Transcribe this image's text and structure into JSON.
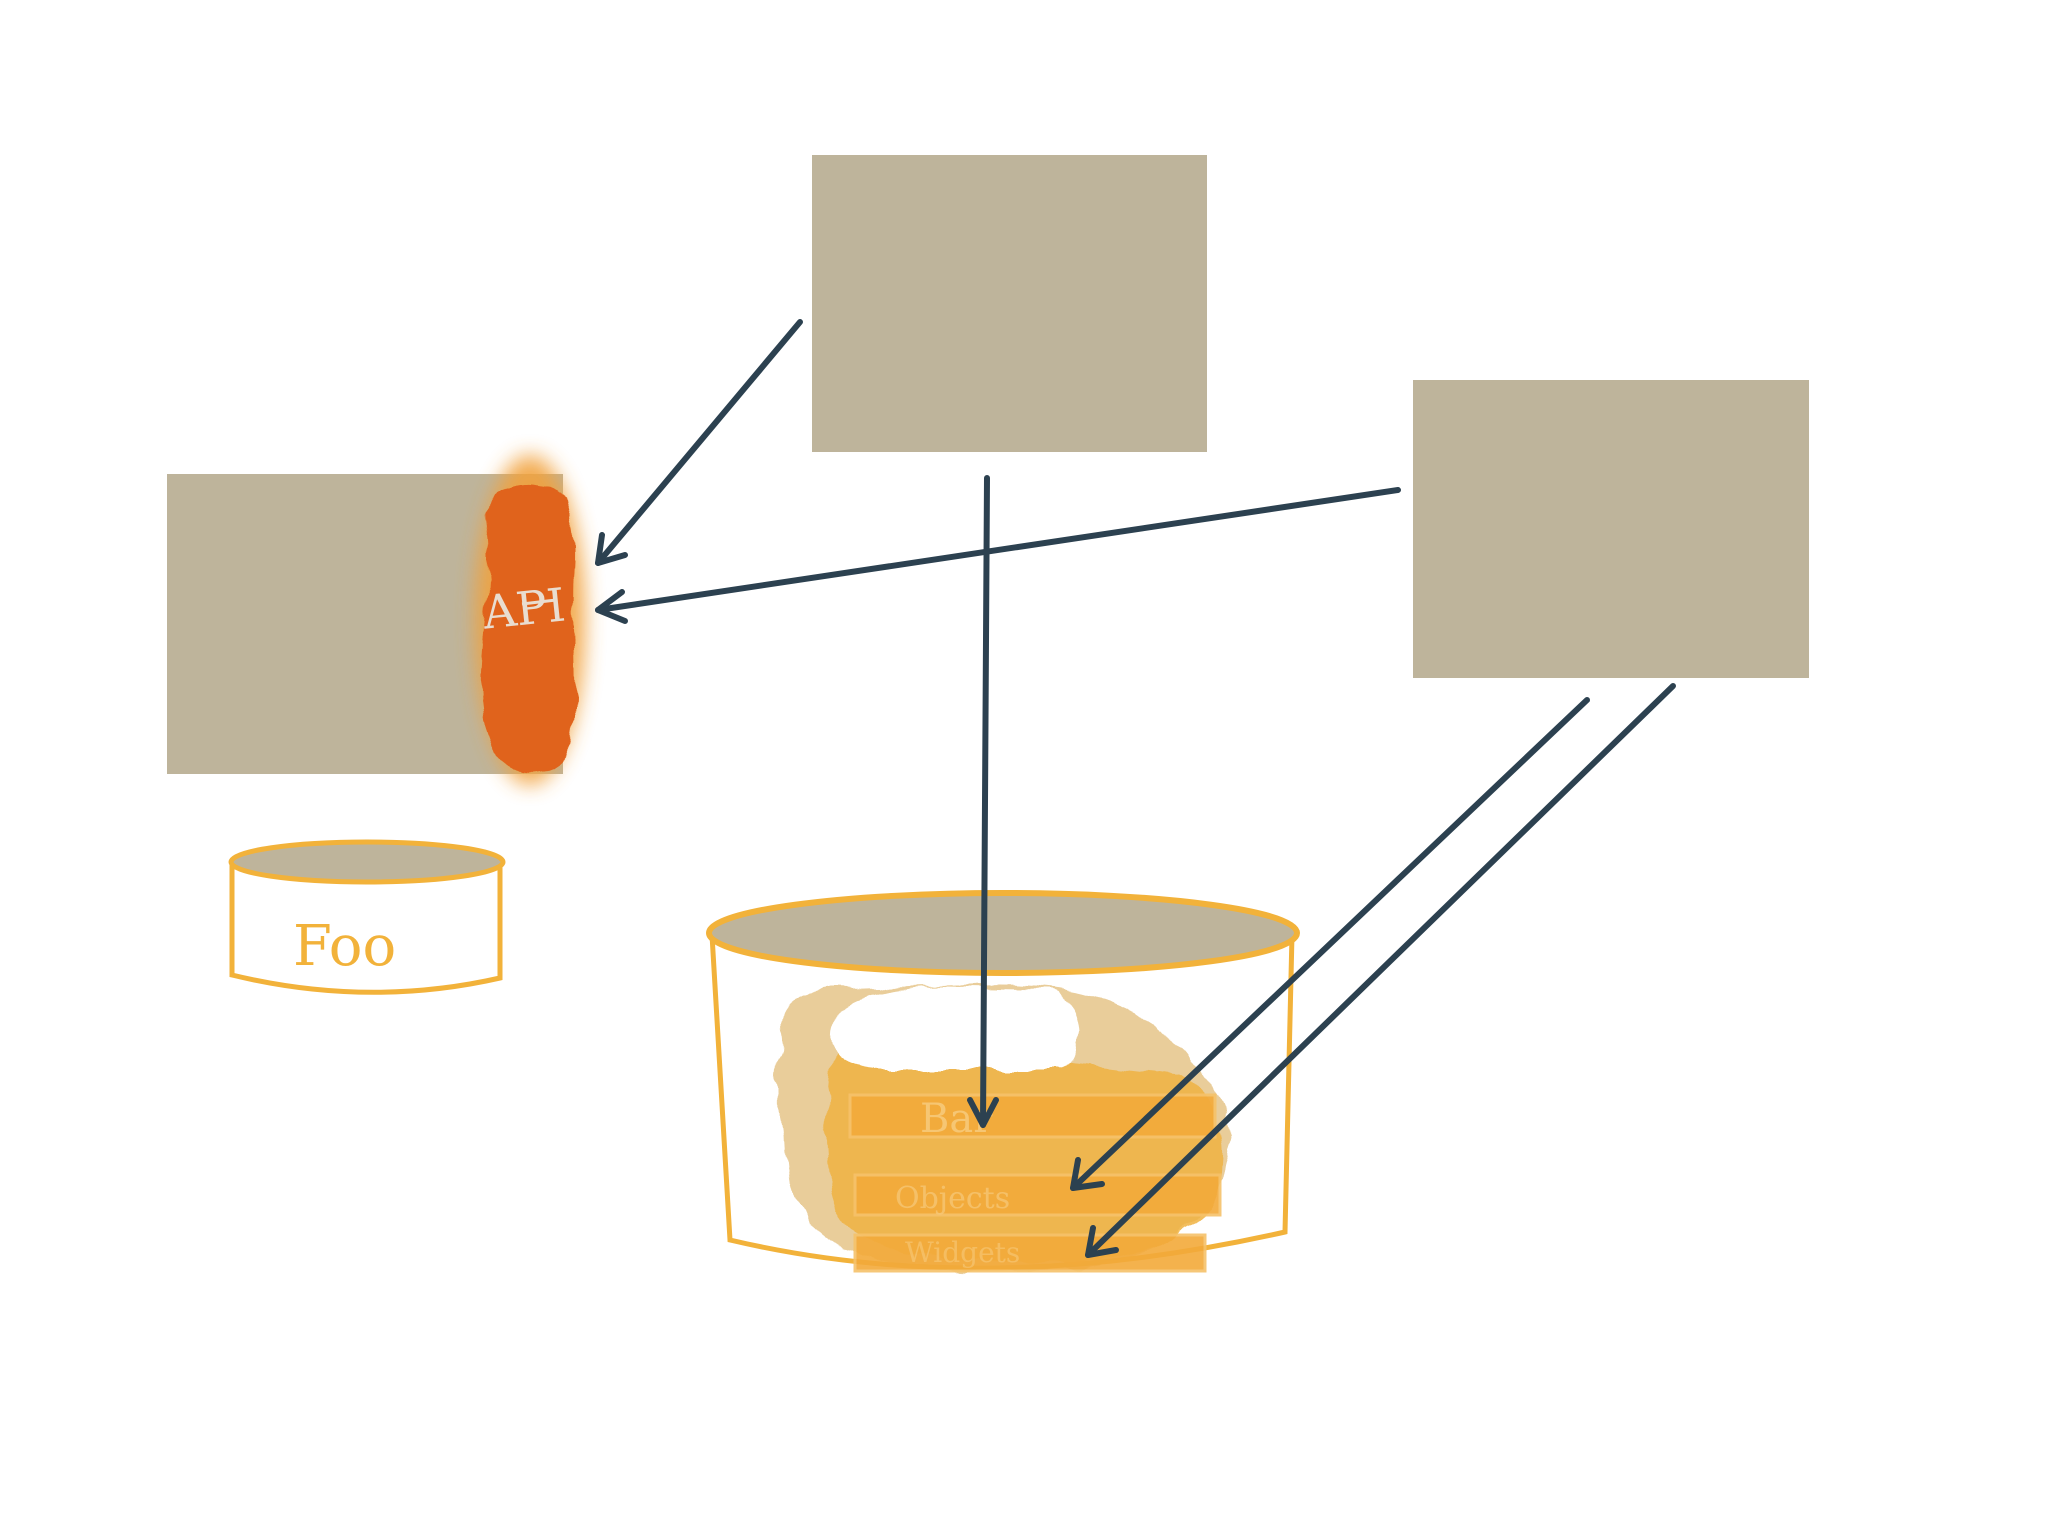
{
  "labels": {
    "api": "API",
    "foo": "Foo",
    "bar_row": "Bar",
    "middle_row": "Objects",
    "bottom_row": "Widgets"
  },
  "colors": {
    "background": "#ffffff",
    "box_fill": "#beb49b",
    "api_orange": "#e0631a",
    "api_glow": "#f1a23c",
    "db_outline": "#f2b23a",
    "db_blob": "#f0b342",
    "db_blob_dark": "#d8a54a",
    "arrow": "#2c4150",
    "faint_text": "#cfc7b3"
  }
}
